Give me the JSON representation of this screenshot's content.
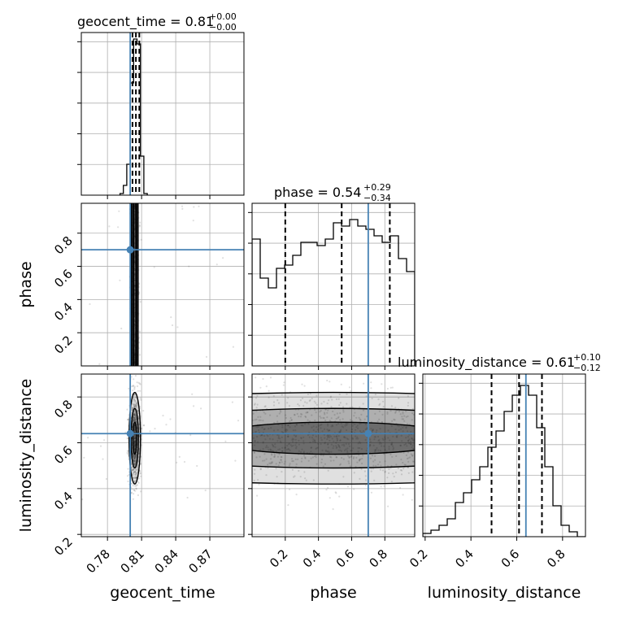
{
  "colors": {
    "truth": "#4682b4",
    "hist": "#000000",
    "grid": "#b0b0b0",
    "background": "#ffffff"
  },
  "chart_data": {
    "type": "corner",
    "parameters": [
      "geocent_time",
      "phase",
      "luminosity_distance"
    ],
    "axis_labels": [
      "geocent_time",
      "phase",
      "luminosity_distance"
    ],
    "truths": [
      0.8,
      0.7,
      0.64
    ],
    "ranges": [
      [
        0.757,
        0.9
      ],
      [
        0.0,
        0.98
      ],
      [
        0.19,
        0.9
      ]
    ],
    "grid": true,
    "ticks": {
      "geocent_time": [
        {
          "v": 0.78,
          "label": "0.78"
        },
        {
          "v": 0.81,
          "label": "0.81"
        },
        {
          "v": 0.84,
          "label": "0.84"
        },
        {
          "v": 0.87,
          "label": "0.87"
        }
      ],
      "phase": [
        {
          "v": 0.2,
          "label": "0.2"
        },
        {
          "v": 0.4,
          "label": "0.4"
        },
        {
          "v": 0.6,
          "label": "0.6"
        },
        {
          "v": 0.8,
          "label": "0.8"
        }
      ],
      "luminosity_distance": [
        {
          "v": 0.2,
          "label": "0.2"
        },
        {
          "v": 0.4,
          "label": "0.4"
        },
        {
          "v": 0.6,
          "label": "0.6"
        },
        {
          "v": 0.8,
          "label": "0.8"
        }
      ]
    },
    "titles": [
      {
        "name": "geocent_time",
        "median": "0.81",
        "plus": "+0.00",
        "minus": "−0.00",
        "quantiles": [
          0.802,
          0.805,
          0.808
        ]
      },
      {
        "name": "phase",
        "median": "0.54",
        "plus": "+0.29",
        "minus": "−0.34",
        "quantiles": [
          0.2,
          0.54,
          0.83
        ]
      },
      {
        "name": "luminosity_distance",
        "median": "0.61",
        "plus": "+0.10",
        "minus": "−0.12",
        "quantiles": [
          0.49,
          0.61,
          0.71
        ]
      }
    ],
    "histograms": [
      {
        "edges": [
          0.791,
          0.794,
          0.797,
          0.8,
          0.803,
          0.806,
          0.809,
          0.812,
          0.815
        ],
        "counts": [
          0.01,
          0.06,
          0.19,
          0.69,
          0.96,
          0.93,
          0.24,
          0.01
        ]
      },
      {
        "edges": [
          0.0,
          0.049,
          0.098,
          0.147,
          0.196,
          0.245,
          0.294,
          0.343,
          0.392,
          0.441,
          0.49,
          0.539,
          0.588,
          0.637,
          0.686,
          0.735,
          0.784,
          0.833,
          0.882,
          0.931,
          0.98
        ],
        "counts": [
          0.78,
          0.54,
          0.48,
          0.6,
          0.62,
          0.68,
          0.76,
          0.76,
          0.74,
          0.78,
          0.88,
          0.86,
          0.9,
          0.86,
          0.84,
          0.8,
          0.76,
          0.8,
          0.66,
          0.58
        ]
      },
      {
        "edges": [
          0.19,
          0.2255,
          0.261,
          0.2965,
          0.332,
          0.3675,
          0.403,
          0.4385,
          0.474,
          0.5095,
          0.545,
          0.5805,
          0.616,
          0.6515,
          0.687,
          0.7225,
          0.758,
          0.7935,
          0.829,
          0.8645,
          0.9
        ],
        "counts": [
          0.02,
          0.04,
          0.07,
          0.11,
          0.21,
          0.27,
          0.35,
          0.43,
          0.55,
          0.65,
          0.77,
          0.87,
          0.93,
          0.87,
          0.67,
          0.43,
          0.19,
          0.07,
          0.03,
          0.0
        ]
      }
    ],
    "pairs": [
      {
        "x": "geocent_time",
        "y": "phase",
        "center": [
          0.804,
          0.49
        ],
        "spread": [
          0.0015,
          0.27
        ]
      },
      {
        "x": "geocent_time",
        "y": "luminosity_distance",
        "center": [
          0.804,
          0.62
        ],
        "spread": [
          0.0025,
          0.1
        ]
      },
      {
        "x": "phase",
        "y": "luminosity_distance",
        "center": [
          0.49,
          0.62
        ],
        "spread": [
          0.27,
          0.1
        ]
      }
    ]
  }
}
